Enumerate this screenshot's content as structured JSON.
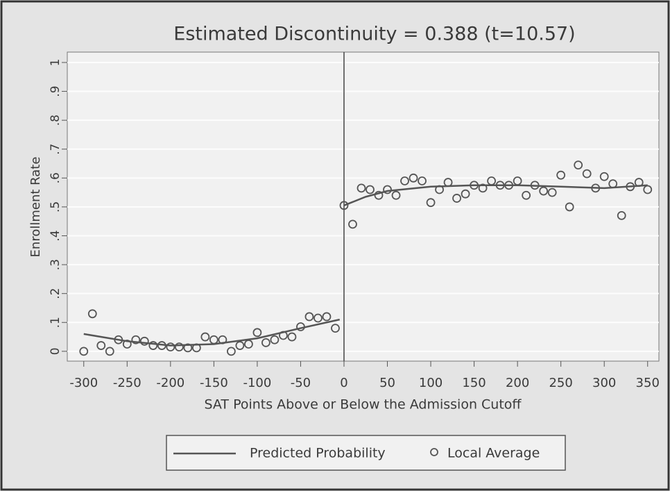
{
  "chart_data": {
    "type": "scatter",
    "title": "Estimated Discontinuity = 0.388 (t=10.57)",
    "xlabel": "SAT Points Above or Below the Admission Cutoff",
    "ylabel": "Enrollment Rate",
    "xlim": [
      -319,
      363
    ],
    "ylim": [
      -0.034,
      1.036
    ],
    "xticks": [
      -300,
      -250,
      -200,
      -150,
      -100,
      -50,
      0,
      50,
      100,
      150,
      200,
      250,
      300,
      350
    ],
    "yticks": [
      0,
      {
        "value": 0.1,
        "label": ".1"
      },
      {
        "value": 0.2,
        "label": ".2"
      },
      {
        "value": 0.3,
        "label": ".3"
      },
      {
        "value": 0.4,
        "label": ".4"
      },
      {
        "value": 0.5,
        "label": ".5"
      },
      {
        "value": 0.6,
        "label": ".6"
      },
      {
        "value": 0.7,
        "label": ".7"
      },
      {
        "value": 0.8,
        "label": ".8"
      },
      {
        "value": 0.9,
        "label": ".9"
      },
      1
    ],
    "grid": true,
    "xline": 0,
    "series": [
      {
        "name": "Predicted Probability",
        "kind": "line",
        "color": "#555555",
        "x": [
          -300,
          -250,
          -200,
          -150,
          -100,
          -50,
          -5,
          0,
          0,
          25,
          50,
          100,
          150,
          200,
          250,
          300,
          350
        ],
        "values": [
          0.06,
          0.035,
          0.02,
          0.025,
          0.045,
          0.08,
          0.11,
          null,
          0.505,
          0.535,
          0.555,
          0.57,
          0.575,
          0.575,
          0.57,
          0.565,
          0.575
        ]
      },
      {
        "name": "Local Average",
        "kind": "scatter",
        "color": "#555555",
        "x": [
          -300,
          -290,
          -280,
          -270,
          -260,
          -250,
          -240,
          -230,
          -220,
          -210,
          -200,
          -190,
          -180,
          -170,
          -160,
          -150,
          -140,
          -130,
          -120,
          -110,
          -100,
          -90,
          -80,
          -70,
          -60,
          -50,
          -40,
          -30,
          -20,
          -10,
          0,
          10,
          20,
          30,
          40,
          50,
          60,
          70,
          80,
          90,
          100,
          110,
          120,
          130,
          140,
          150,
          160,
          170,
          180,
          190,
          200,
          210,
          220,
          230,
          240,
          250,
          260,
          270,
          280,
          290,
          300,
          310,
          320,
          330,
          340,
          350
        ],
        "values": [
          0,
          0.13,
          0.02,
          0,
          0.04,
          0.025,
          0.04,
          0.035,
          0.02,
          0.02,
          0.015,
          0.015,
          0.012,
          0.012,
          0.05,
          0.04,
          0.04,
          0,
          0.02,
          0.025,
          0.065,
          0.03,
          0.04,
          0.055,
          0.05,
          0.085,
          0.12,
          0.115,
          0.12,
          0.08,
          0.505,
          0.44,
          0.565,
          0.56,
          0.54,
          0.56,
          0.54,
          0.59,
          0.6,
          0.59,
          0.515,
          0.56,
          0.585,
          0.53,
          0.545,
          0.575,
          0.565,
          0.59,
          0.575,
          0.575,
          0.59,
          0.54,
          0.575,
          0.555,
          0.55,
          0.61,
          0.5,
          0.645,
          0.615,
          0.565,
          0.605,
          0.58,
          0.47,
          0.57,
          0.585,
          0.56
        ]
      }
    ]
  }
}
